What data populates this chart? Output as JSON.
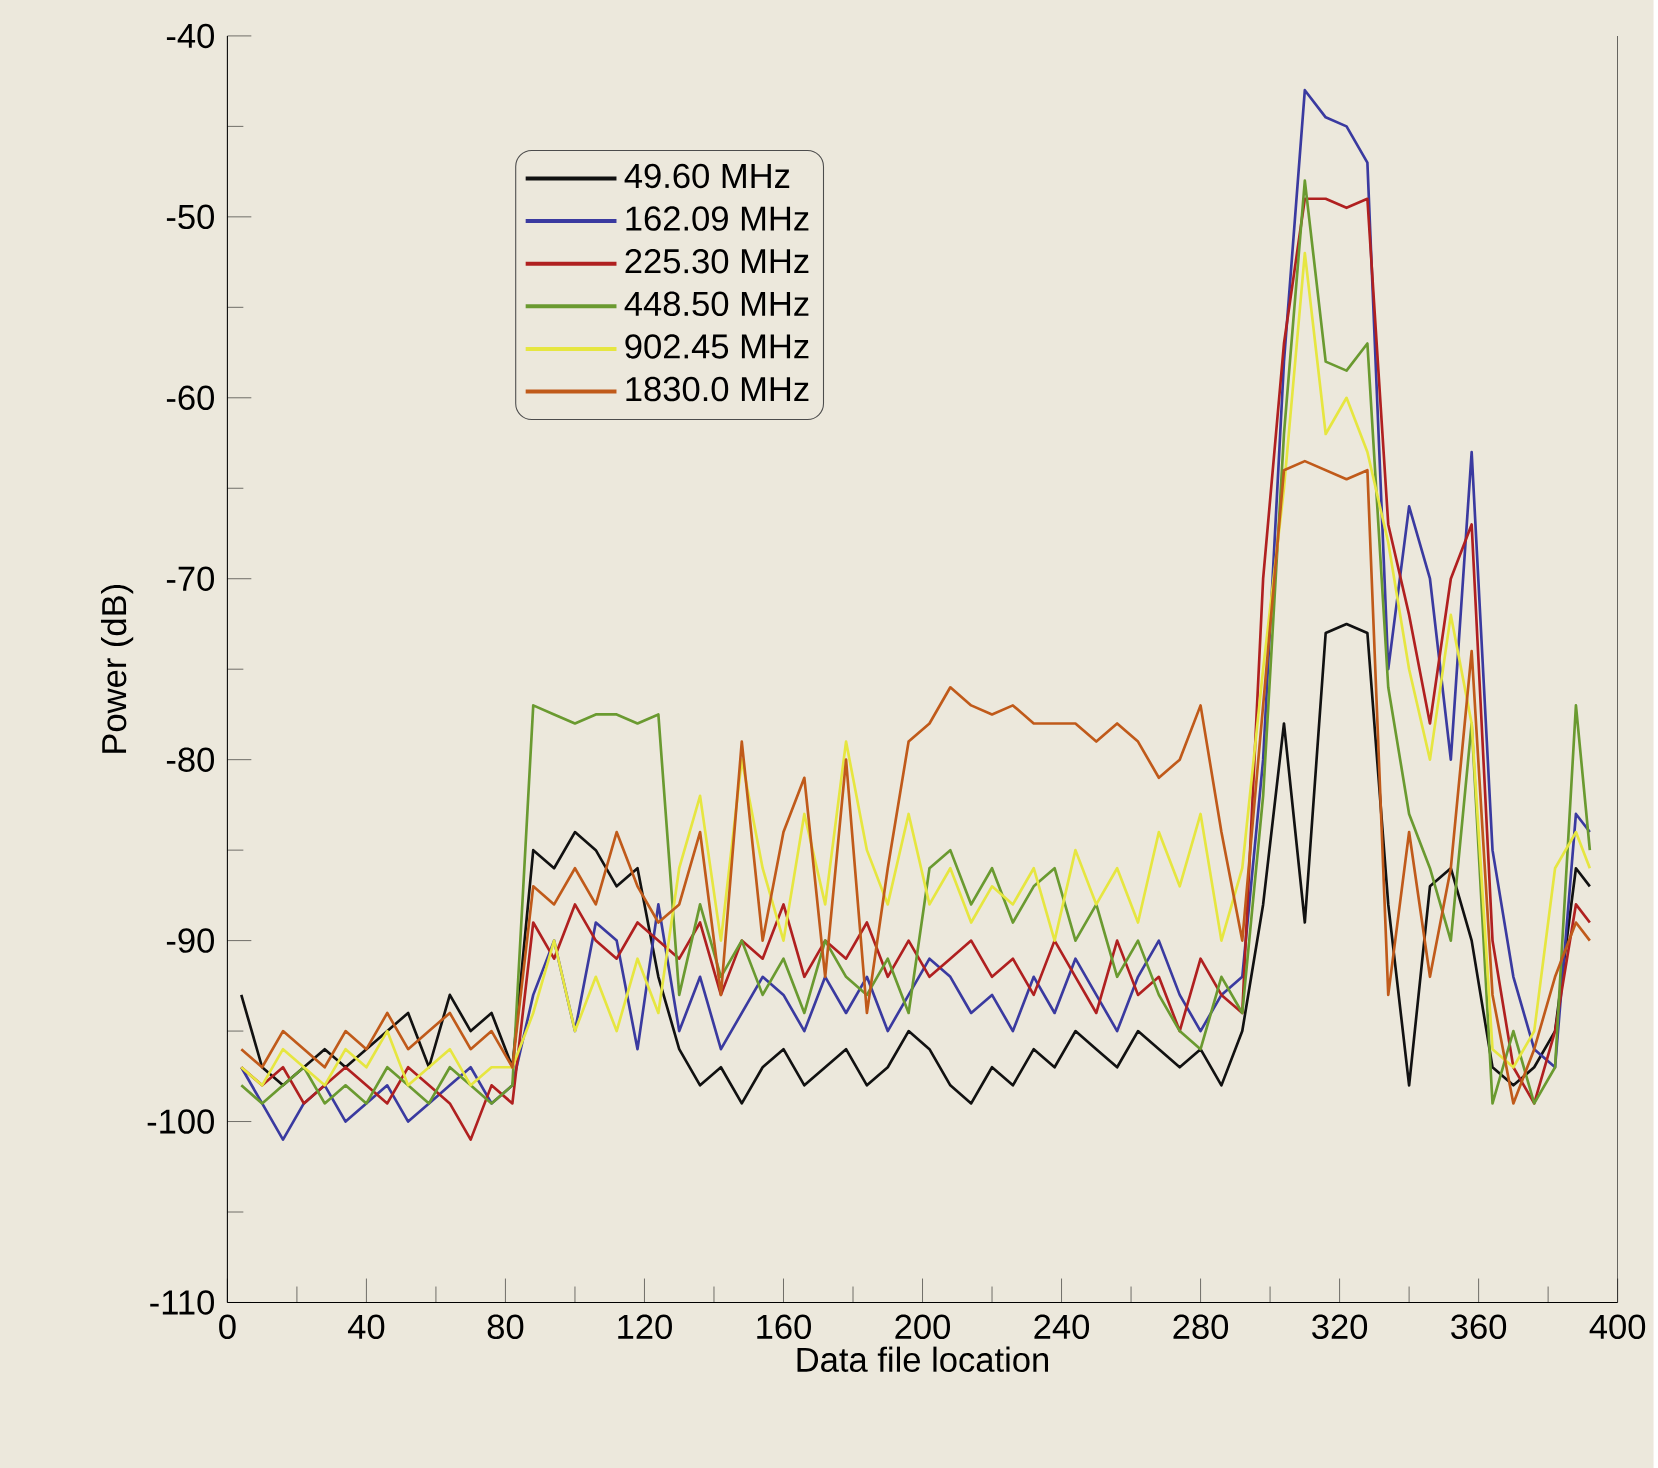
{
  "chart_data": {
    "type": "line",
    "xlabel": "Data file location",
    "ylabel": "Power (dB)",
    "x": [
      4,
      10,
      16,
      22,
      28,
      34,
      40,
      46,
      52,
      58,
      64,
      70,
      76,
      82,
      88,
      94,
      100,
      106,
      112,
      118,
      124,
      130,
      136,
      142,
      148,
      154,
      160,
      166,
      172,
      178,
      184,
      190,
      196,
      202,
      208,
      214,
      220,
      226,
      232,
      238,
      244,
      250,
      256,
      262,
      268,
      274,
      280,
      286,
      292,
      298,
      304,
      310,
      316,
      322,
      328,
      334,
      340,
      346,
      352,
      358,
      364,
      370,
      376,
      382,
      388,
      392
    ],
    "series": [
      {
        "name": "49.60 MHz",
        "color": "#111111",
        "values": [
          -93,
          -97,
          -98,
          -97,
          -96,
          -97,
          -96,
          -95,
          -94,
          -97,
          -93,
          -95,
          -94,
          -97,
          -85,
          -86,
          -84,
          -85,
          -87,
          -86,
          -92,
          -96,
          -98,
          -97,
          -99,
          -97,
          -96,
          -98,
          -97,
          -96,
          -98,
          -97,
          -95,
          -96,
          -98,
          -99,
          -97,
          -98,
          -96,
          -97,
          -95,
          -96,
          -97,
          -95,
          -96,
          -97,
          -96,
          -98,
          -95,
          -88,
          -78,
          -89,
          -73,
          -72.5,
          -73,
          -88,
          -98,
          -87,
          -86,
          -90,
          -97,
          -98,
          -97,
          -95,
          -86,
          -87
        ]
      },
      {
        "name": "162.09 MHz",
        "color": "#3a3aa0",
        "values": [
          -97,
          -99,
          -101,
          -99,
          -98,
          -100,
          -99,
          -98,
          -100,
          -99,
          -98,
          -97,
          -99,
          -98,
          -93,
          -90,
          -95,
          -89,
          -90,
          -96,
          -88,
          -95,
          -92,
          -96,
          -94,
          -92,
          -93,
          -95,
          -92,
          -94,
          -92,
          -95,
          -93,
          -91,
          -92,
          -94,
          -93,
          -95,
          -92,
          -94,
          -91,
          -93,
          -95,
          -92,
          -90,
          -93,
          -95,
          -93,
          -92,
          -80,
          -58,
          -43,
          -44.5,
          -45,
          -47,
          -75,
          -66,
          -70,
          -80,
          -63,
          -85,
          -92,
          -96,
          -97,
          -83,
          -84
        ]
      },
      {
        "name": "225.30 MHz",
        "color": "#b02020",
        "values": [
          -97,
          -98,
          -97,
          -99,
          -98,
          -97,
          -98,
          -99,
          -97,
          -98,
          -99,
          -101,
          -98,
          -99,
          -89,
          -91,
          -88,
          -90,
          -91,
          -89,
          -90,
          -91,
          -89,
          -93,
          -90,
          -91,
          -88,
          -92,
          -90,
          -91,
          -89,
          -92,
          -90,
          -92,
          -91,
          -90,
          -92,
          -91,
          -93,
          -90,
          -92,
          -94,
          -90,
          -93,
          -92,
          -95,
          -91,
          -93,
          -94,
          -70,
          -57,
          -49,
          -49,
          -49.5,
          -49,
          -67,
          -72,
          -78,
          -70,
          -67,
          -90,
          -97,
          -99,
          -95,
          -88,
          -89
        ]
      },
      {
        "name": "448.50 MHz",
        "color": "#6a9a30",
        "values": [
          -98,
          -99,
          -98,
          -97,
          -99,
          -98,
          -99,
          -97,
          -98,
          -99,
          -97,
          -98,
          -99,
          -98,
          -77,
          -77.5,
          -78,
          -77.5,
          -77.5,
          -78,
          -77.5,
          -93,
          -88,
          -92,
          -90,
          -93,
          -91,
          -94,
          -90,
          -92,
          -93,
          -91,
          -94,
          -86,
          -85,
          -88,
          -86,
          -89,
          -87,
          -86,
          -90,
          -88,
          -92,
          -90,
          -93,
          -95,
          -96,
          -92,
          -94,
          -82,
          -62,
          -48,
          -58,
          -58.5,
          -57,
          -76,
          -83,
          -86,
          -90,
          -78,
          -99,
          -95,
          -99,
          -97,
          -77,
          -85
        ]
      },
      {
        "name": "902.45 MHz",
        "color": "#e6e640",
        "values": [
          -97,
          -98,
          -96,
          -97,
          -98,
          -96,
          -97,
          -95,
          -98,
          -97,
          -96,
          -98,
          -97,
          -97,
          -94,
          -90,
          -95,
          -92,
          -95,
          -91,
          -94,
          -86,
          -82,
          -90,
          -80,
          -86,
          -90,
          -83,
          -88,
          -79,
          -85,
          -88,
          -83,
          -88,
          -86,
          -89,
          -87,
          -88,
          -86,
          -90,
          -85,
          -88,
          -86,
          -89,
          -84,
          -87,
          -83,
          -90,
          -86,
          -75,
          -65,
          -52,
          -62,
          -60,
          -63,
          -68,
          -75,
          -80,
          -72,
          -78,
          -96,
          -97,
          -95,
          -86,
          -84,
          -86
        ]
      },
      {
        "name": "1830.0 MHz",
        "color": "#c05a1a",
        "values": [
          -96,
          -97,
          -95,
          -96,
          -97,
          -95,
          -96,
          -94,
          -96,
          -95,
          -94,
          -96,
          -95,
          -97,
          -87,
          -88,
          -86,
          -88,
          -84,
          -87,
          -89,
          -88,
          -84,
          -93,
          -79,
          -90,
          -84,
          -81,
          -92,
          -80,
          -94,
          -86,
          -79,
          -78,
          -76,
          -77,
          -77.5,
          -77,
          -78,
          -78,
          -78,
          -79,
          -78,
          -79,
          -81,
          -80,
          -77,
          -84,
          -90,
          -77,
          -64,
          -63.5,
          -64,
          -64.5,
          -64,
          -93,
          -84,
          -92,
          -86,
          -74,
          -93,
          -99,
          -96,
          -92,
          -89,
          -90
        ]
      }
    ],
    "xlim": [
      0,
      400
    ],
    "ylim": [
      -110,
      -40
    ],
    "xticks": [
      0,
      40,
      80,
      120,
      160,
      200,
      240,
      280,
      320,
      360,
      400
    ],
    "yticks": [
      -110,
      -100,
      -90,
      -80,
      -70,
      -60,
      -50,
      -40
    ],
    "legend": "top left"
  }
}
